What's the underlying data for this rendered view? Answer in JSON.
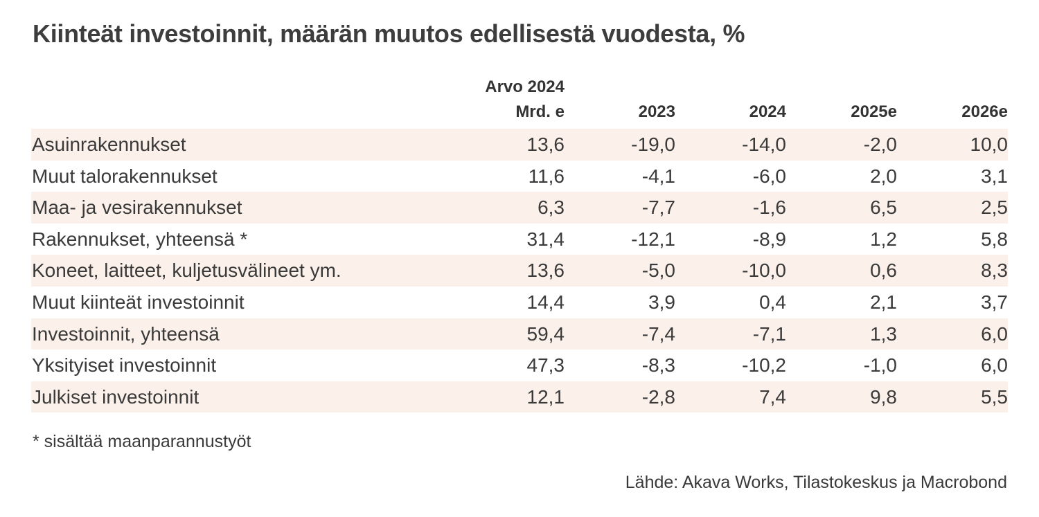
{
  "title": "Kiinteät investoinnit, määrän muutos edellisestä vuodesta, %",
  "chart_data": {
    "type": "table",
    "columns": [
      {
        "line1": "Arvo 2024",
        "line2": "Mrd. e"
      },
      {
        "line1": "",
        "line2": "2023"
      },
      {
        "line1": "",
        "line2": "2024"
      },
      {
        "line1": "",
        "line2": "2025e"
      },
      {
        "line1": "",
        "line2": "2026e"
      }
    ],
    "rows": [
      {
        "label": "Asuinrakennukset",
        "values": [
          "13,6",
          "-19,0",
          "-14,0",
          "-2,0",
          "10,0"
        ]
      },
      {
        "label": "Muut talorakennukset",
        "values": [
          "11,6",
          "-4,1",
          "-6,0",
          "2,0",
          "3,1"
        ]
      },
      {
        "label": "Maa- ja vesirakennukset",
        "values": [
          "6,3",
          "-7,7",
          "-1,6",
          "6,5",
          "2,5"
        ]
      },
      {
        "label": "Rakennukset, yhteensä *",
        "values": [
          "31,4",
          "-12,1",
          "-8,9",
          "1,2",
          "5,8"
        ]
      },
      {
        "label": "Koneet, laitteet, kuljetusvälineet ym.",
        "values": [
          "13,6",
          "-5,0",
          "-10,0",
          "0,6",
          "8,3"
        ]
      },
      {
        "label": "Muut kiinteät investoinnit",
        "values": [
          "14,4",
          "3,9",
          "0,4",
          "2,1",
          "3,7"
        ]
      },
      {
        "label": "Investoinnit, yhteensä",
        "values": [
          "59,4",
          "-7,4",
          "-7,1",
          "1,3",
          "6,0"
        ]
      },
      {
        "label": "Yksityiset investoinnit",
        "values": [
          "47,3",
          "-8,3",
          "-10,2",
          "-1,0",
          "6,0"
        ]
      },
      {
        "label": "Julkiset investoinnit",
        "values": [
          "12,1",
          "-2,8",
          "7,4",
          "9,8",
          "5,5"
        ]
      }
    ],
    "row_shading": "#fcf1ea"
  },
  "footnote": "* sisältää maanparannustyöt",
  "source": "Lähde: Akava Works, Tilastokeskus ja Macrobond"
}
